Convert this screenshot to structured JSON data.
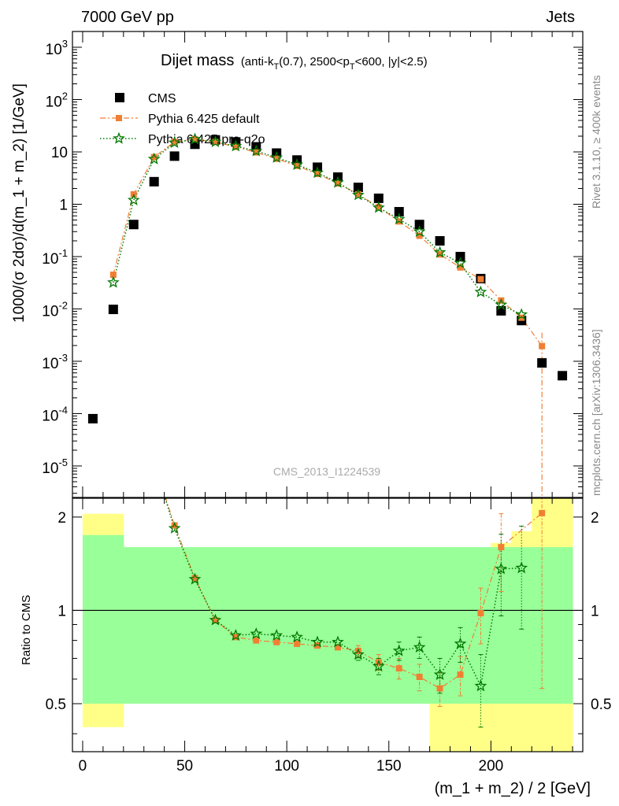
{
  "header": {
    "left": "7000 GeV pp",
    "right": "Jets"
  },
  "side_labels": {
    "rivet": "Rivet 3.1.10, ≥ 400k events",
    "mcplots": "mcplots.cern.ch [arXiv:1306.3436]"
  },
  "chart_data": [
    {
      "type": "scatter",
      "panel": "main",
      "title_main": "Dijet mass",
      "title_cuts_parts": [
        "(anti-k",
        "T",
        "(0.7), 2500<p",
        "T",
        "<600, |y|<2.5)"
      ],
      "ylabel": "1000/(σ 2dσ)/d(m_1 + m_2) [1/GeV]",
      "watermark": "CMS_2013_I1224539",
      "yscale": "log",
      "ylim": [
        2.5e-06,
        2000
      ],
      "xlim": [
        -5,
        245
      ],
      "y_tick_labels": [
        "10^3",
        "10^2",
        "10",
        "1",
        "10^-1",
        "10^-2",
        "10^-3",
        "10^-4",
        "10^-5"
      ],
      "legend_position": "top-left",
      "series": [
        {
          "name": "CMS",
          "color": "#000000",
          "marker": "square",
          "x": [
            5,
            15,
            25,
            35,
            45,
            55,
            65,
            75,
            85,
            95,
            105,
            115,
            125,
            135,
            145,
            155,
            165,
            175,
            185,
            195,
            205,
            215,
            225,
            235
          ],
          "y": [
            8e-05,
            0.0098,
            0.41,
            2.7,
            8.3,
            14.0,
            17.0,
            15.5,
            12.5,
            9.5,
            7.0,
            5.1,
            3.3,
            2.1,
            1.3,
            0.72,
            0.41,
            0.2,
            0.1,
            0.038,
            0.0092,
            0.006,
            0.00093,
            0.00053
          ]
        },
        {
          "name": "Pythia 6.425 default",
          "color": "#f07f34",
          "marker": "square-small",
          "linestyle": "dashdot",
          "x": [
            15,
            25,
            35,
            45,
            55,
            65,
            75,
            85,
            95,
            105,
            115,
            125,
            135,
            145,
            155,
            165,
            175,
            185,
            195,
            205,
            215,
            225
          ],
          "y": [
            0.045,
            1.55,
            8.0,
            15.5,
            17.5,
            15.5,
            12.5,
            9.8,
            7.4,
            5.4,
            3.8,
            2.5,
            1.55,
            0.88,
            0.47,
            0.25,
            0.11,
            0.062,
            0.037,
            0.0145,
            0.0068,
            0.00195
          ]
        },
        {
          "name": "Pythia 6.425 pro-q2o",
          "color": "#007700",
          "marker": "star",
          "linestyle": "dotted",
          "x": [
            15,
            25,
            35,
            45,
            55,
            65,
            75,
            85,
            95,
            105,
            115,
            125,
            135,
            145,
            155,
            165,
            175,
            185,
            195,
            205,
            215
          ],
          "y": [
            0.032,
            1.2,
            7.3,
            15.0,
            17.5,
            15.5,
            12.9,
            10.4,
            7.8,
            5.7,
            4.0,
            2.6,
            1.5,
            0.86,
            0.52,
            0.3,
            0.12,
            0.075,
            0.021,
            0.012,
            0.0078
          ]
        }
      ]
    },
    {
      "type": "line",
      "panel": "ratio",
      "ylabel": "Ratio to CMS",
      "xlabel": "(m_1 + m_2) / 2 [GeV]",
      "ylim": [
        0.35,
        2.3
      ],
      "xlim": [
        -5,
        245
      ],
      "y_tick_labels": [
        "2",
        "1",
        "0.5"
      ],
      "x_tick_labels": [
        "0",
        "50",
        "100",
        "150",
        "200"
      ],
      "x_tick_values": [
        0,
        50,
        100,
        150,
        200
      ],
      "bands": {
        "bins": [
          [
            0,
            10
          ],
          [
            10,
            20
          ],
          [
            20,
            30
          ],
          [
            30,
            40
          ],
          [
            40,
            50
          ],
          [
            50,
            60
          ],
          [
            60,
            70
          ],
          [
            70,
            80
          ],
          [
            80,
            90
          ],
          [
            90,
            100
          ],
          [
            100,
            110
          ],
          [
            110,
            120
          ],
          [
            120,
            130
          ],
          [
            130,
            140
          ],
          [
            140,
            150
          ],
          [
            150,
            160
          ],
          [
            160,
            170
          ],
          [
            170,
            180
          ],
          [
            180,
            190
          ],
          [
            190,
            200
          ],
          [
            200,
            210
          ],
          [
            210,
            220
          ],
          [
            220,
            230
          ],
          [
            230,
            240
          ]
        ],
        "yellow": [
          [
            0.42,
            2.05
          ],
          [
            0.42,
            2.05
          ],
          [
            0.7,
            1.45
          ],
          [
            0.7,
            1.45
          ],
          [
            0.7,
            1.45
          ],
          [
            0.7,
            1.45
          ],
          [
            0.85,
            1.15
          ],
          [
            0.85,
            1.15
          ],
          [
            0.85,
            1.15
          ],
          [
            0.85,
            1.12
          ],
          [
            0.85,
            1.12
          ],
          [
            0.85,
            1.12
          ],
          [
            0.82,
            1.18
          ],
          [
            0.82,
            1.18
          ],
          [
            0.72,
            1.25
          ],
          [
            0.72,
            1.25
          ],
          [
            0.72,
            1.25
          ],
          [
            0.3,
            1.55
          ],
          [
            0.3,
            1.55
          ],
          [
            0.3,
            1.55
          ],
          [
            0.3,
            1.65
          ],
          [
            0.3,
            1.8
          ],
          [
            0.3,
            2.3
          ],
          [
            0.3,
            2.3
          ]
        ],
        "green": [
          [
            0.5,
            1.75
          ],
          [
            0.5,
            1.75
          ],
          [
            0.5,
            1.6
          ],
          [
            0.5,
            1.6
          ],
          [
            0.5,
            1.6
          ],
          [
            0.5,
            1.6
          ],
          [
            0.5,
            1.6
          ],
          [
            0.5,
            1.6
          ],
          [
            0.5,
            1.6
          ],
          [
            0.5,
            1.6
          ],
          [
            0.5,
            1.6
          ],
          [
            0.5,
            1.6
          ],
          [
            0.5,
            1.6
          ],
          [
            0.5,
            1.6
          ],
          [
            0.5,
            1.6
          ],
          [
            0.5,
            1.6
          ],
          [
            0.5,
            1.6
          ],
          [
            0.5,
            1.6
          ],
          [
            0.5,
            1.6
          ],
          [
            0.5,
            1.6
          ],
          [
            0.5,
            1.6
          ],
          [
            0.5,
            1.6
          ],
          [
            0.5,
            1.6
          ],
          [
            0.5,
            1.6
          ]
        ],
        "yellow_color": "#ffff88",
        "green_color": "#99ff99"
      },
      "series": [
        {
          "name": "Pythia 6.425 default",
          "color": "#f07f34",
          "x": [
            35,
            45,
            55,
            65,
            75,
            85,
            95,
            105,
            115,
            125,
            135,
            145,
            155,
            165,
            175,
            185,
            195,
            205,
            225
          ],
          "y": [
            3.0,
            1.88,
            1.27,
            0.93,
            0.82,
            0.8,
            0.79,
            0.78,
            0.77,
            0.76,
            0.74,
            0.68,
            0.65,
            0.61,
            0.56,
            0.62,
            0.98,
            1.6,
            2.06
          ],
          "err": [
            0,
            0,
            0,
            0,
            0,
            0,
            0,
            0,
            0,
            0,
            0.03,
            0.04,
            0.05,
            0.06,
            0.07,
            0.09,
            0.2,
            0.45,
            1.5
          ]
        },
        {
          "name": "Pythia 6.425 pro-q2o",
          "color": "#007700",
          "x": [
            35,
            45,
            55,
            65,
            75,
            85,
            95,
            105,
            115,
            125,
            135,
            145,
            155,
            165,
            175,
            185,
            195,
            205,
            215
          ],
          "y": [
            3.0,
            1.84,
            1.26,
            0.93,
            0.83,
            0.84,
            0.83,
            0.82,
            0.79,
            0.79,
            0.72,
            0.66,
            0.74,
            0.76,
            0.62,
            0.78,
            0.57,
            1.36,
            1.37
          ],
          "err": [
            0,
            0,
            0,
            0,
            0,
            0,
            0,
            0,
            0,
            0,
            0.03,
            0.04,
            0.05,
            0.06,
            0.08,
            0.1,
            0.15,
            0.4,
            0.5
          ]
        }
      ]
    }
  ]
}
